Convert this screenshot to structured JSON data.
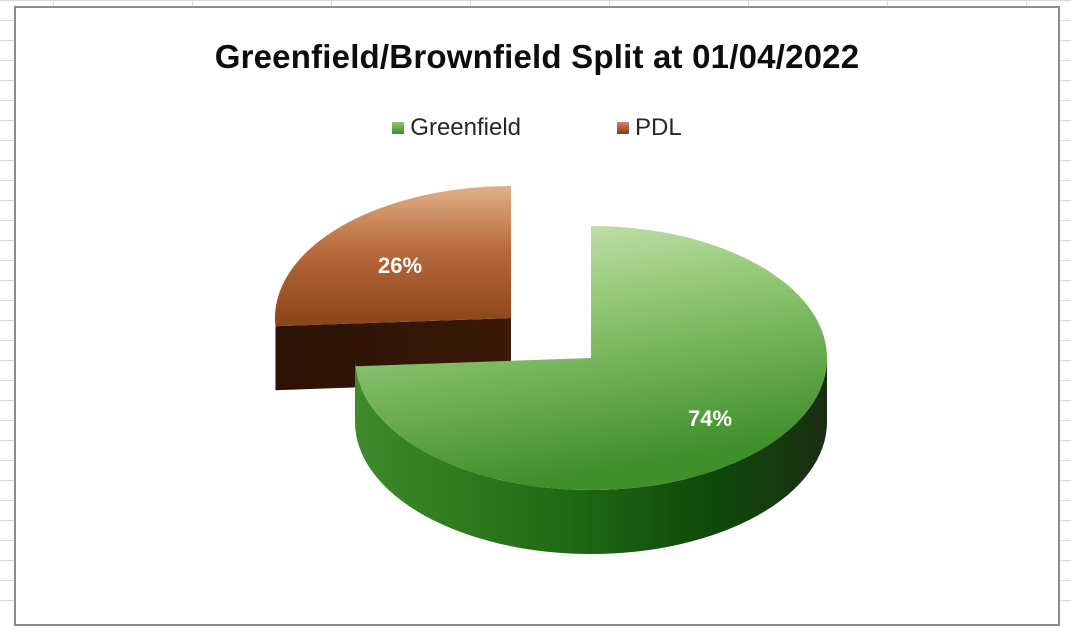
{
  "chart_data": {
    "type": "pie",
    "title": "Greenfield/Brownfield Split at 01/04/2022",
    "categories": [
      "Greenfield",
      "PDL"
    ],
    "values": [
      74,
      26
    ],
    "labels": [
      "74%",
      "26%"
    ],
    "colors": [
      "#4a9a30",
      "#a8623a"
    ],
    "legend_position": "top",
    "style": "3d-exploded"
  }
}
